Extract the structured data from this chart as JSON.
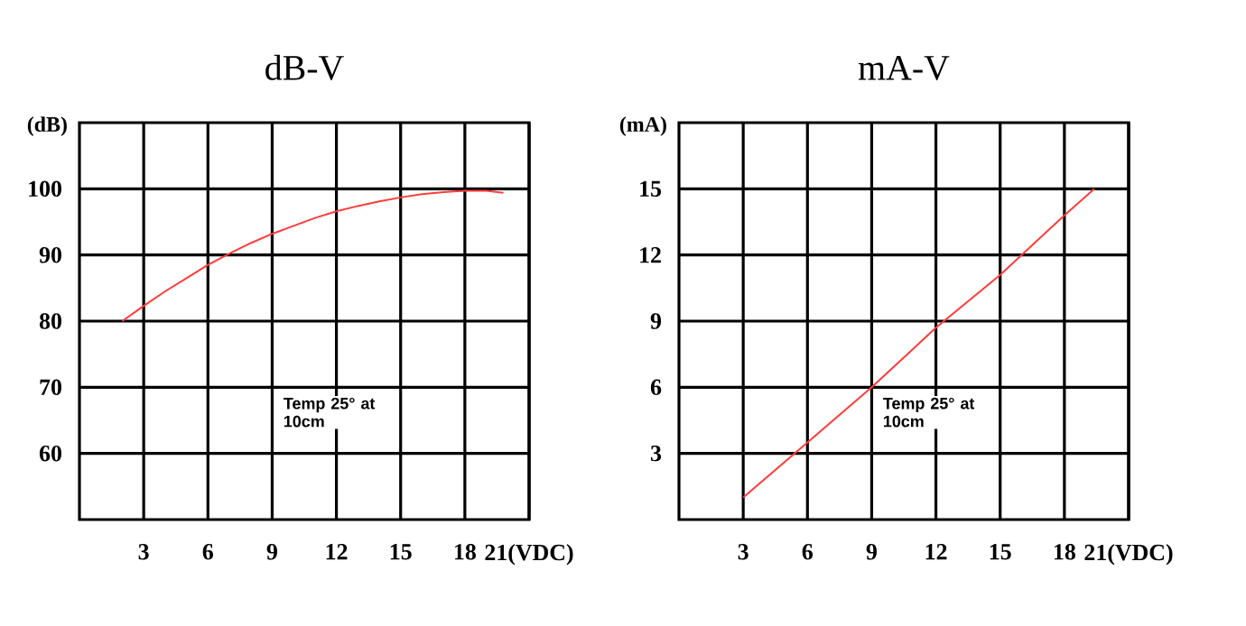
{
  "chart_data": [
    {
      "type": "line",
      "title": "dB-V",
      "ylabel": "(dB)",
      "x": [
        2,
        3,
        4,
        5,
        6,
        7,
        8,
        9,
        10,
        11,
        12,
        13,
        14,
        15,
        16,
        17,
        18,
        19,
        19.8
      ],
      "series": [
        {
          "color": "#ff3b3b",
          "values": [
            80,
            82.3,
            84.5,
            86.5,
            88.5,
            90.2,
            91.8,
            93.2,
            94.4,
            95.6,
            96.6,
            97.4,
            98.1,
            98.7,
            99.2,
            99.5,
            99.7,
            99.7,
            99.4
          ]
        }
      ],
      "xlim": [
        0,
        21
      ],
      "ylim": [
        50,
        110
      ],
      "xticks": [
        3,
        6,
        9,
        12,
        15,
        18,
        {
          "value": 21,
          "label": "21(VDC)"
        }
      ],
      "yticks": [
        60,
        70,
        80,
        90,
        100
      ],
      "grid": true,
      "annotations": [
        "Temp 25° at 10cm"
      ]
    },
    {
      "type": "line",
      "title": "mA-V",
      "ylabel": "(mA)",
      "x": [
        3,
        6,
        9,
        12,
        15,
        18,
        19.4
      ],
      "series": [
        {
          "color": "#ff3b3b",
          "values": [
            1,
            3.5,
            6,
            8.7,
            11.1,
            13.8,
            15
          ]
        }
      ],
      "xlim": [
        0,
        21
      ],
      "ylim": [
        0,
        18
      ],
      "xticks": [
        3,
        6,
        9,
        12,
        15,
        18,
        {
          "value": 21,
          "label": "21(VDC)"
        }
      ],
      "yticks": [
        3,
        6,
        9,
        12,
        15
      ],
      "grid": true,
      "annotations": [
        "Temp 25° at 10cm"
      ]
    }
  ]
}
